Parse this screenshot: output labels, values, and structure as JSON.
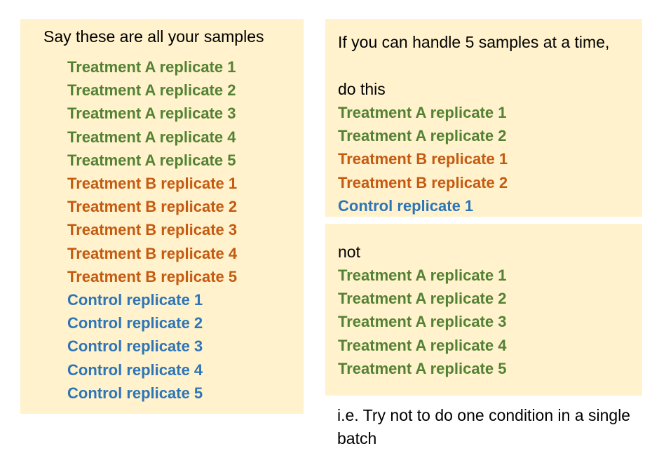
{
  "colors": {
    "panel_bg": "#fff2cc",
    "treatment_a": "#548235",
    "treatment_b": "#c55a11",
    "control": "#2e75b6"
  },
  "left": {
    "title": "Say these are all your samples",
    "items": [
      {
        "label": "Treatment A replicate 1",
        "group": "A"
      },
      {
        "label": "Treatment A replicate 2",
        "group": "A"
      },
      {
        "label": "Treatment A replicate 3",
        "group": "A"
      },
      {
        "label": "Treatment A replicate 4",
        "group": "A"
      },
      {
        "label": "Treatment A replicate 5",
        "group": "A"
      },
      {
        "label": "Treatment B replicate 1",
        "group": "B"
      },
      {
        "label": "Treatment B replicate 2",
        "group": "B"
      },
      {
        "label": "Treatment B replicate 3",
        "group": "B"
      },
      {
        "label": "Treatment B replicate 4",
        "group": "B"
      },
      {
        "label": "Treatment B replicate 5",
        "group": "B"
      },
      {
        "label": "Control replicate 1",
        "group": "C"
      },
      {
        "label": "Control replicate 2",
        "group": "C"
      },
      {
        "label": "Control replicate 3",
        "group": "C"
      },
      {
        "label": "Control replicate 4",
        "group": "C"
      },
      {
        "label": "Control replicate 5",
        "group": "C"
      }
    ]
  },
  "right_top": {
    "title": "If you can handle 5 samples at a time,",
    "do_label": "do this",
    "items": [
      {
        "label": "Treatment A replicate 1",
        "group": "A"
      },
      {
        "label": "Treatment A replicate 2",
        "group": "A"
      },
      {
        "label": "Treatment B replicate 1",
        "group": "B"
      },
      {
        "label": "Treatment B replicate 2",
        "group": "B"
      },
      {
        "label": "Control replicate 1",
        "group": "C"
      }
    ]
  },
  "right_bottom": {
    "not_label": "not",
    "items": [
      {
        "label": "Treatment A replicate 1",
        "group": "A"
      },
      {
        "label": "Treatment A replicate 2",
        "group": "A"
      },
      {
        "label": "Treatment A replicate 3",
        "group": "A"
      },
      {
        "label": "Treatment A replicate 4",
        "group": "A"
      },
      {
        "label": "Treatment A replicate 5",
        "group": "A"
      }
    ]
  },
  "note": "i.e. Try not to do one condition in a single batch"
}
